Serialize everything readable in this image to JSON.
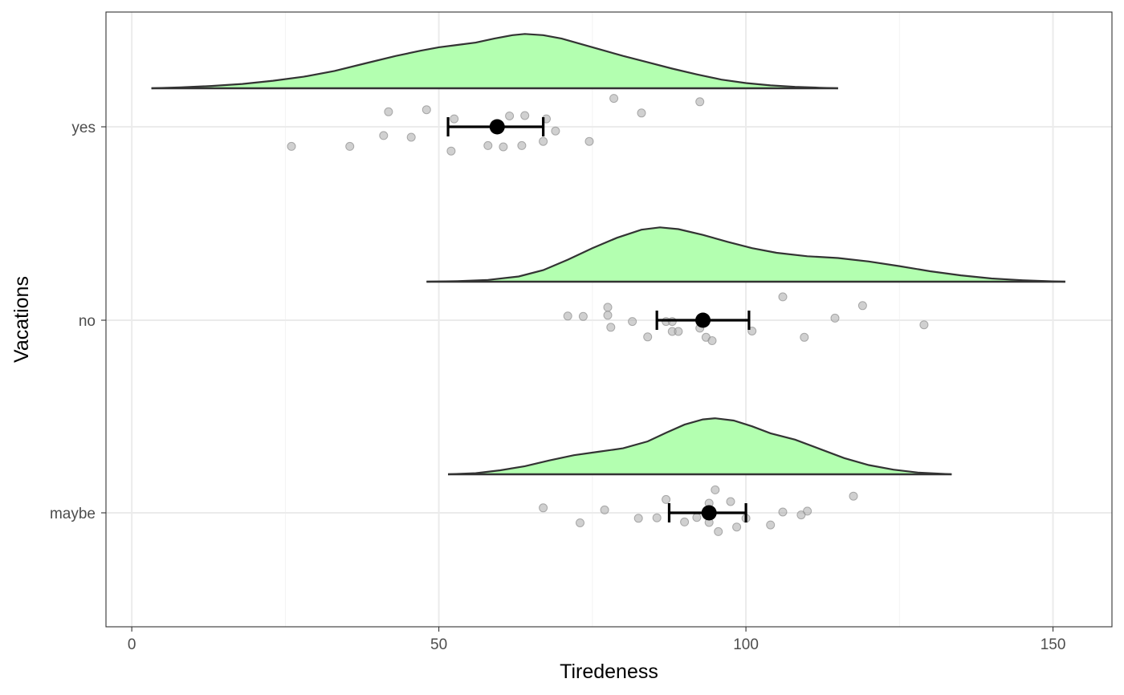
{
  "chart_data": {
    "type": "raincloud",
    "title": "",
    "xlabel": "Tiredeness",
    "ylabel": "Vacations",
    "xlim": [
      -4.2,
      159.6
    ],
    "x_ticks": [
      0,
      50,
      100,
      150
    ],
    "x_minor_ticks": [
      25,
      75,
      125
    ],
    "categories": [
      "yes",
      "no",
      "maybe"
    ],
    "grid": true,
    "colors": {
      "density_fill": "#b3ffb0",
      "density_line": "#333333",
      "points": "#aaaaaa",
      "summary": "#000000",
      "grid": "#ebebeb",
      "panel_border": "#333333"
    },
    "groups": [
      {
        "name": "yes",
        "mean": 59.5,
        "ci": [
          51.5,
          67.0
        ],
        "density_range": [
          3.2,
          115.0
        ],
        "density": [
          [
            3.2,
            0.0
          ],
          [
            8,
            0.015
          ],
          [
            13,
            0.04
          ],
          [
            18,
            0.075
          ],
          [
            23,
            0.13
          ],
          [
            28,
            0.2
          ],
          [
            33,
            0.3
          ],
          [
            38,
            0.43
          ],
          [
            43,
            0.56
          ],
          [
            47,
            0.65
          ],
          [
            50,
            0.71
          ],
          [
            53,
            0.75
          ],
          [
            56,
            0.79
          ],
          [
            59,
            0.86
          ],
          [
            62,
            0.92
          ],
          [
            64,
            0.94
          ],
          [
            67,
            0.92
          ],
          [
            70,
            0.86
          ],
          [
            73,
            0.77
          ],
          [
            77,
            0.65
          ],
          [
            80,
            0.56
          ],
          [
            84,
            0.45
          ],
          [
            88,
            0.34
          ],
          [
            92,
            0.24
          ],
          [
            96,
            0.15
          ],
          [
            100,
            0.09
          ],
          [
            104,
            0.05
          ],
          [
            108,
            0.025
          ],
          [
            112,
            0.01
          ],
          [
            115,
            0.0
          ]
        ],
        "points": [
          [
            78.5,
            0.68
          ],
          [
            92.5,
            0.6
          ],
          [
            41.8,
            0.36
          ],
          [
            48.0,
            0.41
          ],
          [
            83.0,
            0.33
          ],
          [
            52.5,
            0.19
          ],
          [
            61.5,
            0.26
          ],
          [
            64.0,
            0.27
          ],
          [
            67.5,
            0.19
          ],
          [
            69.0,
            -0.1
          ],
          [
            41.0,
            -0.21
          ],
          [
            45.5,
            -0.25
          ],
          [
            74.5,
            -0.35
          ],
          [
            67.0,
            -0.35
          ],
          [
            58.0,
            -0.45
          ],
          [
            63.5,
            -0.45
          ],
          [
            60.5,
            -0.48
          ],
          [
            26.0,
            -0.47
          ],
          [
            35.5,
            -0.47
          ],
          [
            52.0,
            -0.58
          ]
        ]
      },
      {
        "name": "no",
        "mean": 93.0,
        "ci": [
          85.5,
          100.5
        ],
        "density_range": [
          48.0,
          152.0
        ],
        "density": [
          [
            48,
            0.0
          ],
          [
            53,
            0.01
          ],
          [
            58,
            0.03
          ],
          [
            63,
            0.09
          ],
          [
            67,
            0.2
          ],
          [
            71,
            0.38
          ],
          [
            75,
            0.58
          ],
          [
            79,
            0.76
          ],
          [
            83,
            0.9
          ],
          [
            86,
            0.94
          ],
          [
            89,
            0.91
          ],
          [
            93,
            0.81
          ],
          [
            97,
            0.69
          ],
          [
            101,
            0.58
          ],
          [
            105,
            0.5
          ],
          [
            110,
            0.44
          ],
          [
            115,
            0.41
          ],
          [
            120,
            0.35
          ],
          [
            125,
            0.27
          ],
          [
            130,
            0.18
          ],
          [
            135,
            0.11
          ],
          [
            140,
            0.055
          ],
          [
            145,
            0.025
          ],
          [
            150,
            0.005
          ],
          [
            152,
            0.0
          ]
        ],
        "points": [
          [
            106.0,
            0.56
          ],
          [
            119.0,
            0.35
          ],
          [
            77.5,
            0.31
          ],
          [
            71.0,
            0.1
          ],
          [
            73.5,
            0.09
          ],
          [
            77.5,
            0.12
          ],
          [
            114.5,
            0.05
          ],
          [
            81.5,
            -0.03
          ],
          [
            87.0,
            -0.03
          ],
          [
            88.0,
            -0.03
          ],
          [
            129.0,
            -0.11
          ],
          [
            78.0,
            -0.17
          ],
          [
            92.5,
            -0.19
          ],
          [
            88.0,
            -0.27
          ],
          [
            89.0,
            -0.27
          ],
          [
            101.0,
            -0.26
          ],
          [
            84.0,
            -0.4
          ],
          [
            93.5,
            -0.41
          ],
          [
            109.5,
            -0.41
          ],
          [
            94.5,
            -0.49
          ]
        ]
      },
      {
        "name": "maybe",
        "mean": 94.0,
        "ci": [
          87.5,
          100.0
        ],
        "density_range": [
          51.5,
          133.5
        ],
        "density": [
          [
            51.5,
            0.0
          ],
          [
            56,
            0.02
          ],
          [
            60,
            0.07
          ],
          [
            64,
            0.14
          ],
          [
            68,
            0.24
          ],
          [
            72,
            0.33
          ],
          [
            76,
            0.39
          ],
          [
            80,
            0.45
          ],
          [
            84,
            0.57
          ],
          [
            87,
            0.72
          ],
          [
            90,
            0.86
          ],
          [
            93,
            0.95
          ],
          [
            95,
            0.97
          ],
          [
            98,
            0.93
          ],
          [
            101,
            0.83
          ],
          [
            104,
            0.71
          ],
          [
            108,
            0.6
          ],
          [
            112,
            0.44
          ],
          [
            116,
            0.28
          ],
          [
            120,
            0.16
          ],
          [
            124,
            0.08
          ],
          [
            128,
            0.03
          ],
          [
            133.5,
            0.0
          ]
        ],
        "points": [
          [
            95.0,
            0.55
          ],
          [
            117.5,
            0.4
          ],
          [
            87.0,
            0.32
          ],
          [
            97.5,
            0.27
          ],
          [
            94.0,
            0.23
          ],
          [
            67.0,
            0.12
          ],
          [
            77.0,
            0.07
          ],
          [
            110.0,
            0.04
          ],
          [
            106.0,
            0.02
          ],
          [
            109.0,
            -0.05
          ],
          [
            82.5,
            -0.13
          ],
          [
            85.5,
            -0.12
          ],
          [
            92.0,
            -0.11
          ],
          [
            100.0,
            -0.13
          ],
          [
            73.0,
            -0.24
          ],
          [
            90.0,
            -0.22
          ],
          [
            94.0,
            -0.23
          ],
          [
            104.0,
            -0.29
          ],
          [
            98.5,
            -0.34
          ],
          [
            95.5,
            -0.45
          ]
        ]
      }
    ]
  }
}
